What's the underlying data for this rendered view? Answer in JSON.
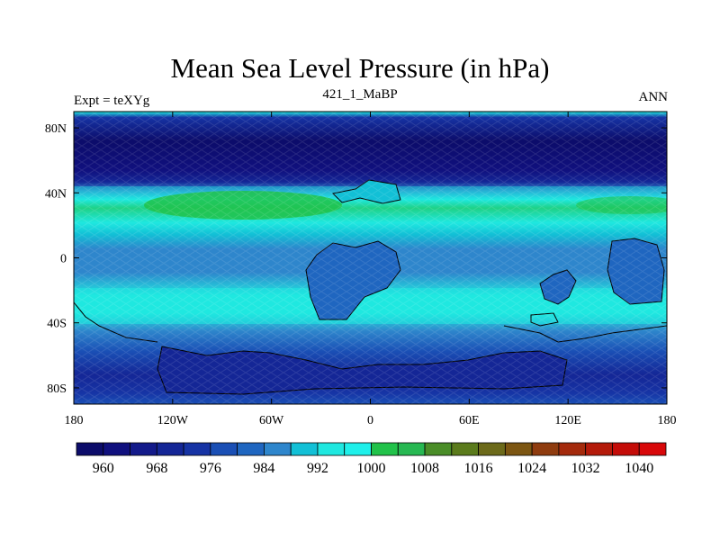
{
  "title": "Mean Sea Level Pressure (in hPa)",
  "subtitle_left": "Expt = teXYg",
  "subtitle_center": "421_1_MaBP",
  "subtitle_right": "ANN",
  "map": {
    "lon_range": [
      -180,
      180
    ],
    "lat_range": [
      -90,
      90
    ],
    "x_ticks": [
      {
        "value": -180,
        "label": "180"
      },
      {
        "value": -120,
        "label": "120W"
      },
      {
        "value": -60,
        "label": "60W"
      },
      {
        "value": 0,
        "label": "0"
      },
      {
        "value": 60,
        "label": "60E"
      },
      {
        "value": 120,
        "label": "120E"
      },
      {
        "value": 180,
        "label": "180"
      }
    ],
    "y_ticks": [
      {
        "value": 80,
        "label": "80N"
      },
      {
        "value": 40,
        "label": "40N"
      },
      {
        "value": 0,
        "label": "0"
      },
      {
        "value": -40,
        "label": "40S"
      },
      {
        "value": -80,
        "label": "80S"
      }
    ]
  },
  "colorbar": {
    "colors": [
      "#0c0c6a",
      "#10107e",
      "#131a8a",
      "#142696",
      "#1633a4",
      "#1a4fb5",
      "#1f66c0",
      "#2e86cc",
      "#12c0d6",
      "#1fe8e0",
      "#1ff0ea",
      "#21c24a",
      "#27b852",
      "#4a8d28",
      "#5b7b1c",
      "#6c6a1a",
      "#7c5612",
      "#8f3c0f",
      "#a42a0c",
      "#b41a0a",
      "#c40c08",
      "#d8080a"
    ],
    "labels": [
      {
        "index": 1,
        "label": "960"
      },
      {
        "index": 3,
        "label": "968"
      },
      {
        "index": 5,
        "label": "976"
      },
      {
        "index": 7,
        "label": "984"
      },
      {
        "index": 9,
        "label": "992"
      },
      {
        "index": 11,
        "label": "1000"
      },
      {
        "index": 13,
        "label": "1008"
      },
      {
        "index": 15,
        "label": "1016"
      },
      {
        "index": 17,
        "label": "1024"
      },
      {
        "index": 19,
        "label": "1032"
      },
      {
        "index": 21,
        "label": "1040"
      }
    ]
  }
}
